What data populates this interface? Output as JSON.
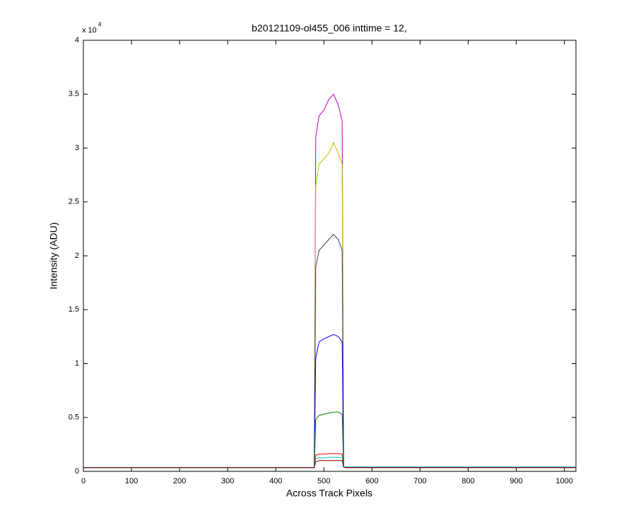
{
  "chart_data": {
    "type": "line",
    "title": "b20121109-ol455_006 inttime = 12,",
    "x_label": "Across Track Pixels",
    "y_label": "Intensity (ADU)",
    "y_exponent_base": "x 10",
    "y_exponent": "4",
    "x": [
      0,
      480,
      483,
      490,
      500,
      510,
      520,
      530,
      538,
      541,
      545,
      1024
    ],
    "series": [
      {
        "color": "#bf00bf",
        "values": [
          350,
          350,
          31000,
          33000,
          33500,
          34500,
          35000,
          34000,
          32500,
          400,
          350,
          350
        ]
      },
      {
        "color": "#bfbf00",
        "values": [
          350,
          350,
          26500,
          28500,
          29000,
          29500,
          30500,
          29500,
          28500,
          400,
          350,
          350
        ]
      },
      {
        "color": "#404040",
        "values": [
          350,
          350,
          19000,
          20500,
          21000,
          21500,
          22000,
          21500,
          20500,
          400,
          350,
          350
        ]
      },
      {
        "color": "#0000ff",
        "values": [
          350,
          350,
          10500,
          12000,
          12300,
          12500,
          12700,
          12500,
          12000,
          400,
          400,
          400
        ]
      },
      {
        "color": "#008000",
        "values": [
          350,
          350,
          4800,
          5200,
          5300,
          5400,
          5500,
          5500,
          5300,
          400,
          350,
          350
        ]
      },
      {
        "color": "#ff0000",
        "values": [
          350,
          350,
          1500,
          1600,
          1600,
          1650,
          1650,
          1650,
          1600,
          400,
          350,
          350
        ]
      },
      {
        "color": "#00bfbf",
        "values": [
          350,
          350,
          1200,
          1250,
          1250,
          1300,
          1300,
          1300,
          1250,
          400,
          400,
          400
        ]
      },
      {
        "color": "#800000",
        "values": [
          350,
          350,
          900,
          1000,
          1000,
          1000,
          1000,
          1000,
          1000,
          400,
          350,
          350
        ]
      }
    ],
    "xlim": [
      0,
      1024
    ],
    "xticks": [
      0,
      100,
      200,
      300,
      400,
      500,
      600,
      700,
      800,
      900,
      1000
    ],
    "ylim": [
      0,
      40000
    ],
    "yticks": [
      {
        "value": 0,
        "label": "0"
      },
      {
        "value": 5000,
        "label": "0.5"
      },
      {
        "value": 10000,
        "label": "1"
      },
      {
        "value": 15000,
        "label": "1.5"
      },
      {
        "value": 20000,
        "label": "2"
      },
      {
        "value": 25000,
        "label": "2.5"
      },
      {
        "value": 30000,
        "label": "3"
      },
      {
        "value": 35000,
        "label": "3.5"
      },
      {
        "value": 40000,
        "label": "4"
      }
    ],
    "grid": false
  }
}
